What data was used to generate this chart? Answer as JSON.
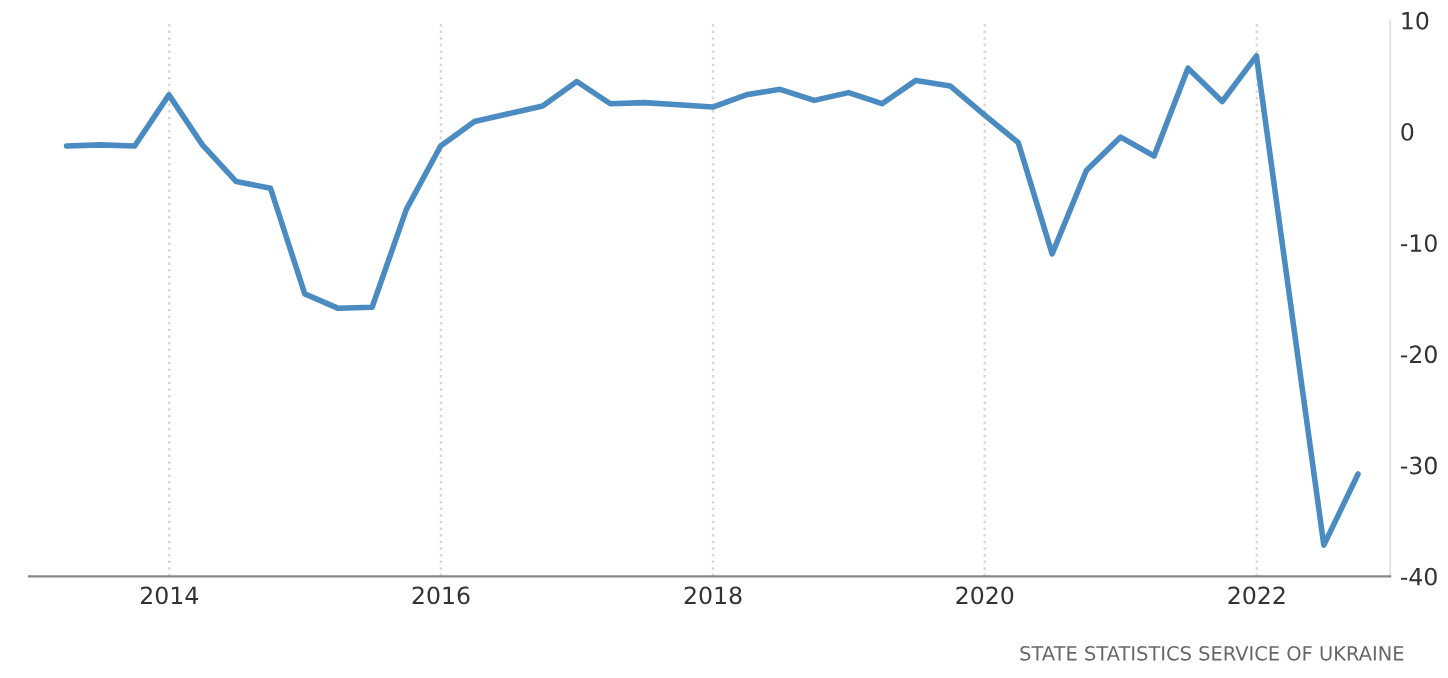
{
  "chart_data": {
    "type": "line",
    "x": [
      "2013-03-31",
      "2013-06-30",
      "2013-09-30",
      "2013-12-31",
      "2014-03-31",
      "2014-06-30",
      "2014-09-30",
      "2014-12-31",
      "2015-03-31",
      "2015-06-30",
      "2015-09-30",
      "2015-12-31",
      "2016-03-31",
      "2016-06-30",
      "2016-09-30",
      "2016-12-31",
      "2017-03-31",
      "2017-06-30",
      "2017-09-30",
      "2017-12-31",
      "2018-03-31",
      "2018-06-30",
      "2018-09-30",
      "2018-12-31",
      "2019-03-31",
      "2019-06-30",
      "2019-09-30",
      "2019-12-31",
      "2020-03-31",
      "2020-06-30",
      "2020-09-30",
      "2020-12-31",
      "2021-03-31",
      "2021-06-30",
      "2021-09-30",
      "2021-12-31",
      "2022-03-31",
      "2022-06-30",
      "2022-09-30"
    ],
    "series": [
      {
        "color": "#4a8bc2",
        "values": [
          -1.3,
          -1.2,
          -1.3,
          3.3,
          -1.2,
          -4.5,
          -5.1,
          -14.6,
          -15.9,
          -15.8,
          -7.0,
          -1.3,
          0.9,
          1.6,
          2.3,
          4.5,
          2.5,
          2.6,
          2.4,
          2.2,
          3.3,
          3.8,
          2.8,
          3.5,
          2.5,
          4.6,
          4.1,
          1.5,
          -1.0,
          -11.0,
          -3.5,
          -0.5,
          -2.2,
          5.7,
          2.7,
          6.8,
          -15.1,
          -37.2,
          -30.8
        ]
      }
    ],
    "xlim": [
      "2012-12-20",
      "2022-12-25"
    ],
    "xticks": [
      {
        "value": "2014-01-01",
        "label": "2014"
      },
      {
        "value": "2016-01-01",
        "label": "2016"
      },
      {
        "value": "2018-01-01",
        "label": "2018"
      },
      {
        "value": "2020-01-01",
        "label": "2020"
      },
      {
        "value": "2022-01-01",
        "label": "2022"
      }
    ],
    "ylim": [
      -40,
      10
    ],
    "yticks": [
      10,
      0,
      -10,
      -20,
      -30,
      -40
    ],
    "grid": "x",
    "marker": "none",
    "line_style": "solid",
    "legend": false,
    "annotations": [
      "STATE STATISTICS SERVICE OF UKRAINE"
    ]
  }
}
